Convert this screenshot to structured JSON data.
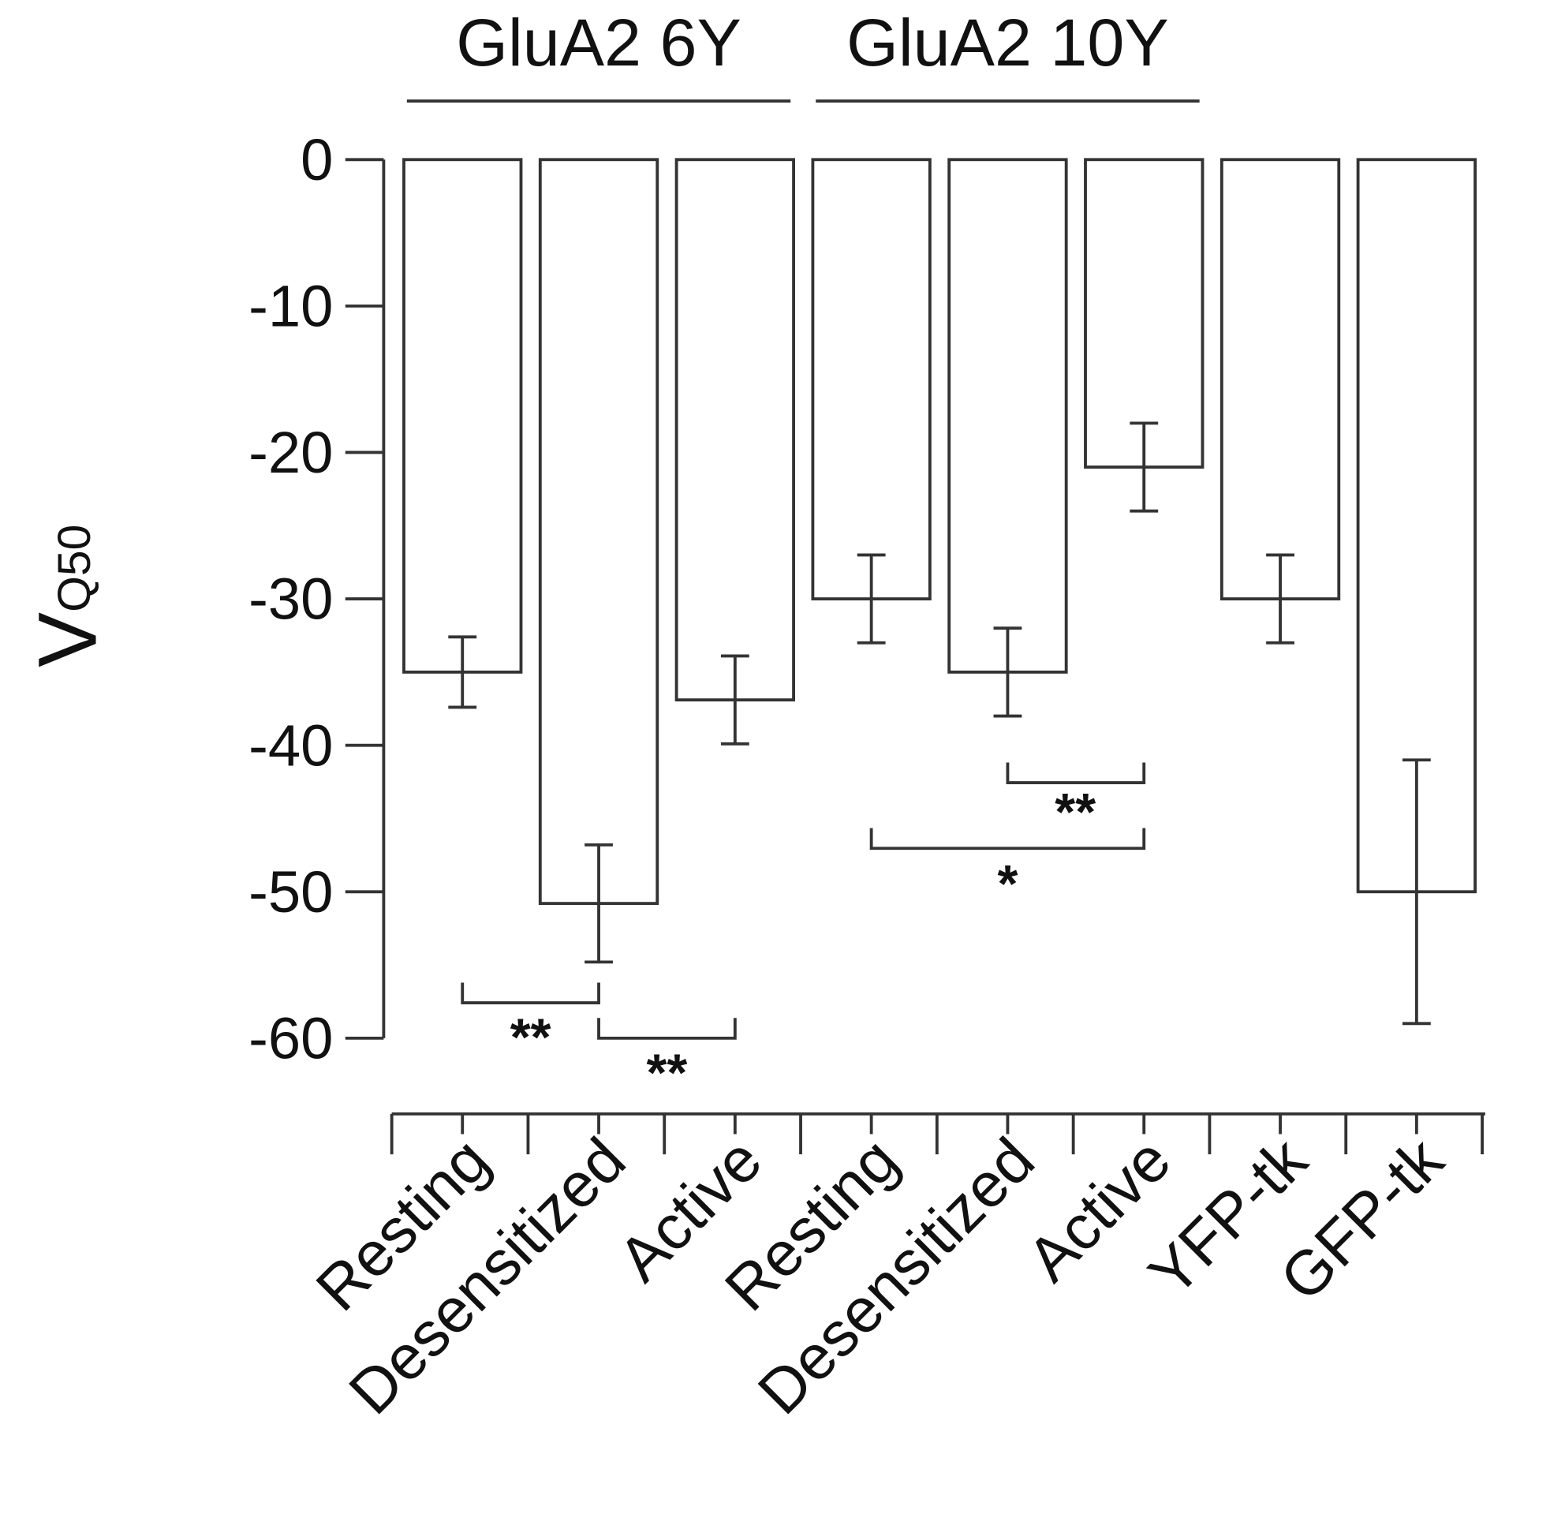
{
  "chart_data": {
    "type": "bar",
    "ylabel": "V",
    "ylabel_sub": "Q50",
    "categories": [
      "Resting",
      "Desensitized",
      "Active",
      "Resting",
      "Desensitized",
      "Active",
      "YFP-tk",
      "GFP-tk"
    ],
    "values": [
      -35,
      -50.8,
      -36.9,
      -30,
      -35,
      -21,
      -30,
      -50
    ],
    "errors": [
      2.4,
      4,
      3,
      3,
      3,
      3,
      3,
      9
    ],
    "groups": [
      "GluA2 6Y",
      "GluA2 10Y"
    ],
    "annotations": [
      "**",
      "**",
      "**",
      "*"
    ],
    "ylim": [
      -60,
      0
    ],
    "yticks": [
      0,
      -10,
      -20,
      -30,
      -40,
      -50,
      -60
    ],
    "color": "#ffffff",
    "edgecolor": "#333333"
  }
}
